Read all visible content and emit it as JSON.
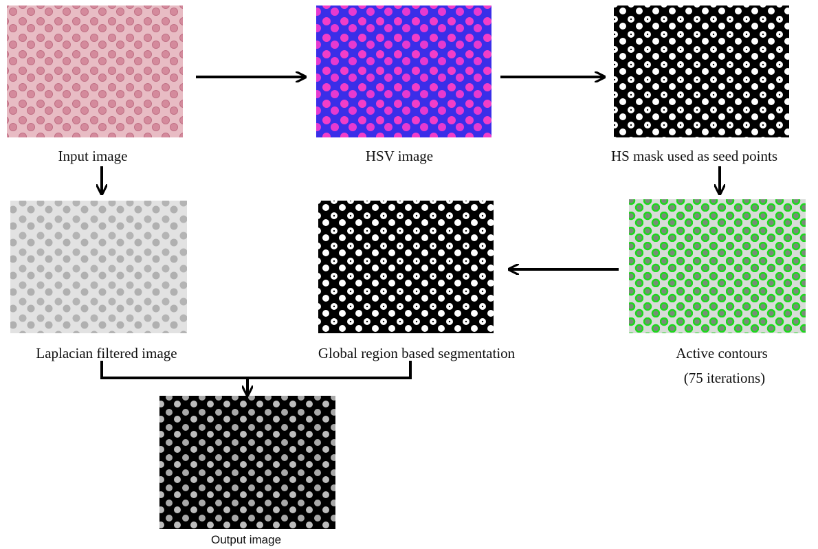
{
  "nodes": [
    {
      "label": "Input image"
    },
    {
      "label": "HSV image"
    },
    {
      "label": "HS mask used as seed points"
    },
    {
      "label": "Laplacian  filtered image"
    },
    {
      "label": "Global region  based segmentation"
    },
    {
      "label": "Active contours",
      "sublabel": "(75 iterations)"
    },
    {
      "label": "Output image"
    }
  ]
}
